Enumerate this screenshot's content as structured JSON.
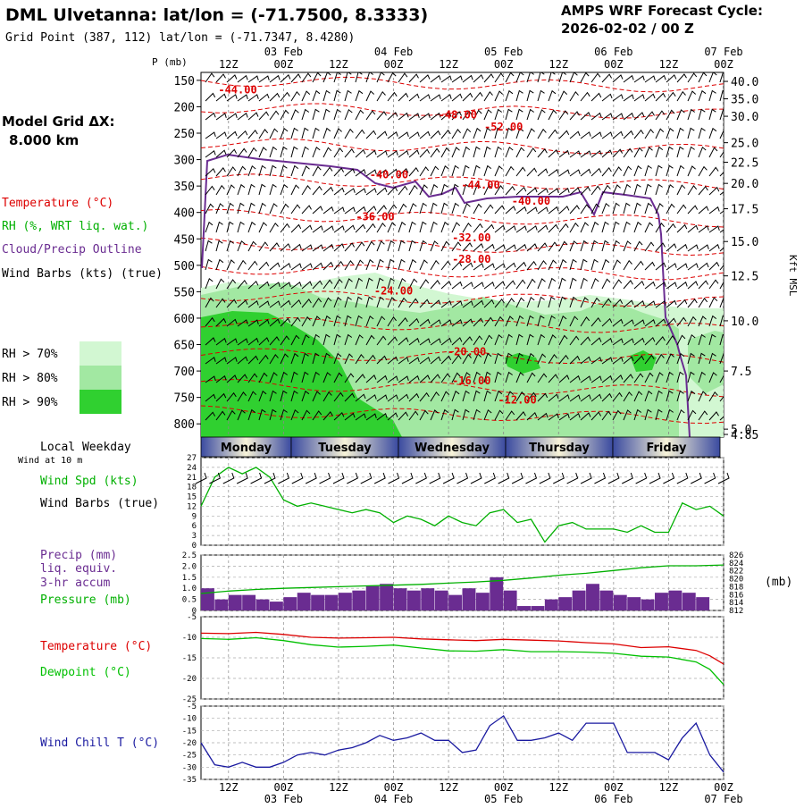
{
  "header": {
    "title": "DML Ulvetanna:  lat/lon = (-71.7500, 8.3333)",
    "subtitle": "Grid Point (387, 112) lat/lon = (-71.7347, 8.4280)",
    "cycle_line1": "AMPS WRF Forecast Cycle:",
    "cycle_line2": "2026-02-02 / 00  Z"
  },
  "left_panel": {
    "grid_line1": "Model Grid ΔX:",
    "grid_line2": "8.000 km",
    "legend_temperature": "Temperature (°C)",
    "legend_rh": "RH (%, WRT liq. wat.)",
    "legend_cloud": "Cloud/Precip Outline",
    "legend_wind": "Wind Barbs (kts) (true)",
    "rh70": "RH > 70%",
    "rh80": "RH > 80%",
    "rh90": "RH > 90%",
    "local_weekday": "Local Weekday",
    "wind_at": "Wind at 10 m"
  },
  "colors": {
    "temperature": "#dd0000",
    "rh_label": "#00b000",
    "cloud": "#6a2c91",
    "rh70": "#d2f7d2",
    "rh80": "#a2e8a2",
    "rh90": "#30d030",
    "precip": "#6a2c91",
    "pressure": "#00b000",
    "dewpoint": "#00c000",
    "windchill": "#1a1aa0",
    "windspd": "#00b000"
  },
  "time_axis": {
    "top_hours": [
      "12Z",
      "00Z",
      "12Z",
      "00Z",
      "12Z",
      "00Z",
      "12Z",
      "00Z",
      "12Z",
      "00Z"
    ],
    "top_dates": [
      "03 Feb",
      "04 Feb",
      "05 Feb",
      "06 Feb",
      "07 Feb"
    ],
    "bottom_hours": [
      "12Z",
      "00Z",
      "12Z",
      "00Z",
      "12Z",
      "00Z",
      "12Z",
      "00Z",
      "12Z",
      "00Z"
    ],
    "bottom_dates": [
      "03 Feb",
      "04 Feb",
      "05 Feb",
      "06 Feb",
      "07 Feb"
    ]
  },
  "weekdays": [
    "Monday",
    "Tuesday",
    "Wednesday",
    "Thursday",
    "Friday"
  ],
  "chart_data": [
    {
      "type": "heatmap",
      "name": "cross-section",
      "ylabel": "P (mb)",
      "y2label": "Kft MSL",
      "pressure_ticks": [
        150,
        200,
        250,
        300,
        350,
        400,
        450,
        500,
        550,
        600,
        650,
        700,
        750,
        800
      ],
      "kft_ticks": [
        "40.0",
        "35.0",
        "30.0",
        "25.0",
        "22.5",
        "20.0",
        "17.5",
        "15.0",
        "12.5",
        "10.0",
        "7.5",
        "5.0",
        "4.85"
      ],
      "kft_at_pressure": [
        152,
        185,
        218,
        268,
        305,
        345,
        393,
        455,
        520,
        605,
        700,
        810,
        820
      ],
      "x_range_hours": [
        6,
        120
      ],
      "y_range_mb": [
        135,
        825
      ],
      "temperature_labels": [
        {
          "text": "-44.00",
          "t": 14,
          "p": 175
        },
        {
          "text": "-48.00",
          "t": 62,
          "p": 222
        },
        {
          "text": "-52.00",
          "t": 72,
          "p": 245
        },
        {
          "text": "-40.00",
          "t": 47,
          "p": 335
        },
        {
          "text": "-44.00",
          "t": 67,
          "p": 355
        },
        {
          "text": "-40.00",
          "t": 78,
          "p": 385
        },
        {
          "text": "-36.00",
          "t": 44,
          "p": 415
        },
        {
          "text": "-32.00",
          "t": 65,
          "p": 455
        },
        {
          "text": "-28.00",
          "t": 65,
          "p": 495
        },
        {
          "text": "-24.00",
          "t": 48,
          "p": 555
        },
        {
          "text": "-20.00",
          "t": 64,
          "p": 670
        },
        {
          "text": "-16.00",
          "t": 65,
          "p": 725
        },
        {
          "text": "-12.00",
          "t": 75,
          "p": 762
        }
      ]
    },
    {
      "type": "line",
      "name": "wind-speed",
      "ylabel": "Wind Spd (kts)",
      "y2label": "Wind Barbs (true)",
      "yticks": [
        0,
        3,
        6,
        9,
        12,
        15,
        18,
        21,
        24,
        27
      ],
      "ylim": [
        0,
        27
      ],
      "x": [
        6,
        9,
        12,
        15,
        18,
        21,
        24,
        27,
        30,
        33,
        36,
        39,
        42,
        45,
        48,
        51,
        54,
        57,
        60,
        63,
        66,
        69,
        72,
        75,
        78,
        81,
        84,
        87,
        90,
        93,
        96,
        99,
        102,
        105,
        108,
        111,
        114,
        117,
        120
      ],
      "values": [
        12,
        21,
        24,
        22,
        24,
        21,
        14,
        12,
        13,
        12,
        11,
        10,
        11,
        10,
        7,
        9,
        8,
        6,
        9,
        7,
        6,
        10,
        11,
        7,
        8,
        1,
        6,
        7,
        5,
        5,
        5,
        4,
        6,
        4,
        4,
        13,
        11,
        12,
        9
      ]
    },
    {
      "type": "bar",
      "name": "precip-pressure",
      "ylabel": "Precip (mm)",
      "ylabel2": "liq. equiv.",
      "ylabel3": "3-hr accum",
      "ylabel4": "Pressure (mb)",
      "y2label": "(mb)",
      "yticks": [
        "0",
        "0.5",
        "1.0",
        "1.5",
        "2.0",
        "2.5"
      ],
      "y2ticks": [
        "826",
        "824",
        "822",
        "820",
        "818",
        "816",
        "814",
        "812"
      ],
      "ylim": [
        0,
        2.5
      ],
      "y2lim": [
        812,
        826
      ],
      "precip_values": [
        1.0,
        0.5,
        0.7,
        0.7,
        0.5,
        0.4,
        0.6,
        0.8,
        0.7,
        0.7,
        0.8,
        0.9,
        1.1,
        1.2,
        1.0,
        0.9,
        1.0,
        0.9,
        0.7,
        1.0,
        0.8,
        1.5,
        0.9,
        0.2,
        0.2,
        0.5,
        0.6,
        0.9,
        1.2,
        0.9,
        0.7,
        0.6,
        0.5,
        0.8,
        0.9,
        0.8,
        0.6
      ],
      "pressure_x": [
        6,
        12,
        18,
        24,
        30,
        36,
        42,
        48,
        54,
        60,
        66,
        72,
        78,
        84,
        90,
        96,
        102,
        108,
        114,
        120
      ],
      "pressure_values": [
        816.3,
        816.9,
        817.3,
        817.6,
        817.8,
        818.0,
        818.2,
        818.4,
        818.6,
        818.9,
        819.2,
        819.6,
        820.2,
        820.9,
        821.4,
        822.1,
        822.8,
        823.3,
        823.3,
        823.5
      ]
    },
    {
      "type": "line",
      "name": "temperature-dewpoint",
      "ylabel": "Temperature (°C)",
      "ylabel2": "Dewpoint (°C)",
      "yticks": [
        -5,
        -10,
        -15,
        -20,
        -25
      ],
      "ylim": [
        -25,
        -5
      ],
      "x": [
        6,
        12,
        18,
        24,
        30,
        36,
        42,
        48,
        54,
        60,
        66,
        72,
        78,
        84,
        90,
        96,
        102,
        108,
        114,
        117,
        120
      ],
      "series": [
        {
          "name": "Temperature",
          "values": [
            -9.0,
            -9.1,
            -8.8,
            -9.3,
            -10.0,
            -10.2,
            -10.1,
            -10.0,
            -10.4,
            -10.6,
            -10.8,
            -10.5,
            -10.7,
            -10.9,
            -11.3,
            -11.6,
            -12.5,
            -12.3,
            -13.2,
            -14.5,
            -16.5
          ]
        },
        {
          "name": "Dewpoint",
          "values": [
            -10.3,
            -10.5,
            -10.1,
            -10.8,
            -11.8,
            -12.4,
            -12.2,
            -11.9,
            -12.6,
            -13.3,
            -13.4,
            -13.0,
            -13.5,
            -13.5,
            -13.6,
            -13.9,
            -14.6,
            -14.8,
            -16.0,
            -17.8,
            -21.5
          ]
        }
      ]
    },
    {
      "type": "line",
      "name": "wind-chill",
      "ylabel": "Wind Chill T (°C)",
      "yticks": [
        -5,
        -10,
        -15,
        -20,
        -25,
        -30,
        -35
      ],
      "ylim": [
        -35,
        -5
      ],
      "x": [
        6,
        9,
        12,
        15,
        18,
        21,
        24,
        27,
        30,
        33,
        36,
        39,
        42,
        45,
        48,
        51,
        54,
        57,
        60,
        63,
        66,
        69,
        72,
        75,
        78,
        81,
        84,
        87,
        90,
        93,
        96,
        99,
        102,
        105,
        108,
        111,
        114,
        117,
        120
      ],
      "series": [
        {
          "name": "Wind Chill",
          "values": [
            -20,
            -29,
            -30,
            -28,
            -30,
            -30,
            -28,
            -25,
            -24,
            -25,
            -23,
            -22,
            -20,
            -17,
            -19,
            -18,
            -16,
            -19,
            -19,
            -24,
            -23,
            -13,
            -9,
            -19,
            -19,
            -18,
            -16,
            -19,
            -12,
            -12,
            -12,
            -24,
            -24,
            -24,
            -27,
            -18,
            -12,
            -25,
            -32
          ]
        }
      ]
    }
  ]
}
